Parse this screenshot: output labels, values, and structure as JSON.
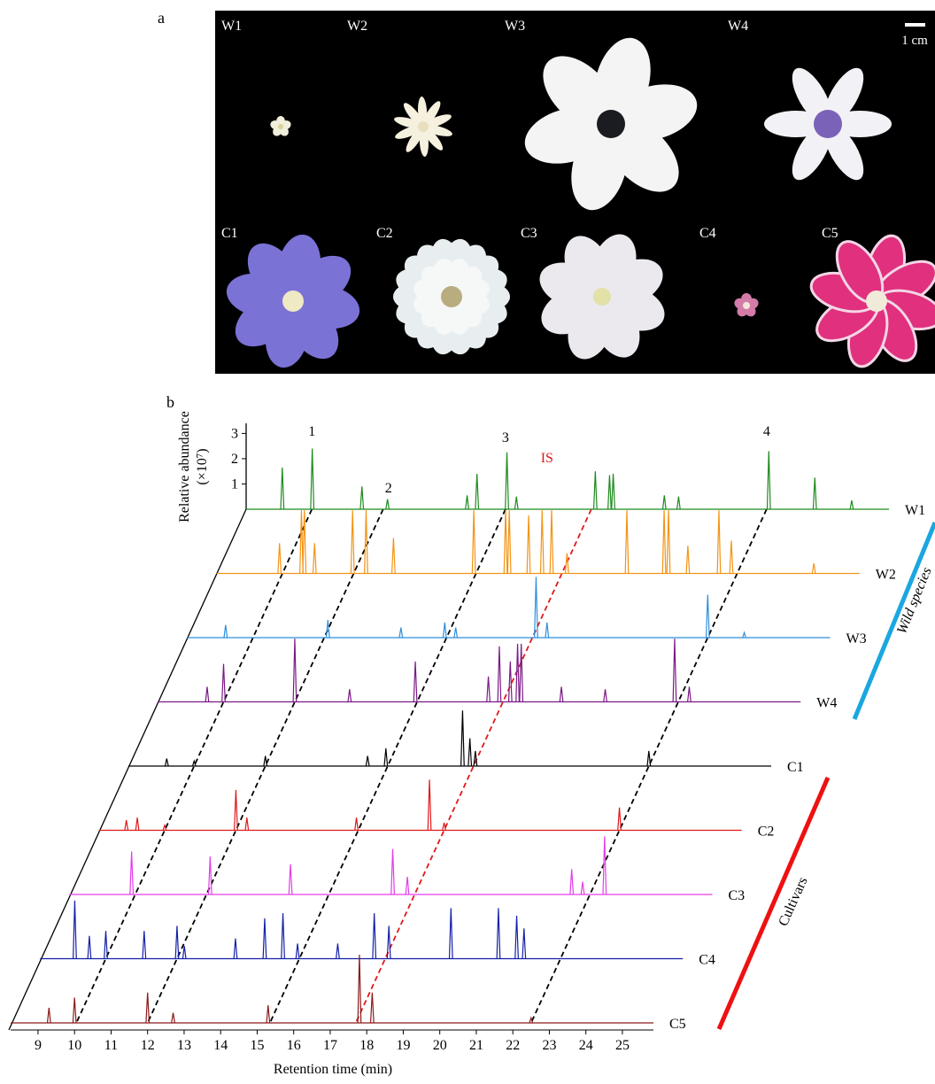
{
  "panel_a": {
    "label": "a",
    "photo_labels": [
      "W1",
      "W2",
      "W3",
      "W4",
      "C1",
      "C2",
      "C3",
      "C4",
      "C5"
    ],
    "scale_bar": "1 cm"
  },
  "chart_data": {
    "type": "line",
    "panel_label": "b",
    "xlabel": "Retention time (min)",
    "ylabel": "Relative abundance",
    "yunit": "(×10⁷)",
    "xlim": [
      8.25,
      25.85
    ],
    "xticks": [
      9,
      10,
      11,
      12,
      13,
      14,
      15,
      16,
      17,
      18,
      19,
      20,
      21,
      22,
      23,
      24,
      25
    ],
    "ylim": [
      0,
      3.4
    ],
    "yticks": [
      1,
      2,
      3
    ],
    "series": [
      {
        "name": "W1",
        "color": "#1e8a1e",
        "x": [
          9.24,
          10.06,
          11.42,
          12.12,
          14.3,
          14.57,
          15.39,
          15.65,
          17.81,
          18.2,
          18.3,
          19.7,
          20.09,
          22.56,
          23.82,
          24.83
        ],
        "values": [
          1.65,
          2.4,
          0.9,
          0.4,
          0.55,
          1.4,
          2.25,
          0.5,
          1.5,
          1.35,
          1.4,
          0.55,
          0.5,
          2.3,
          1.25,
          0.35
        ]
      },
      {
        "name": "W2",
        "color": "#f39416",
        "x": [
          9.97,
          10.57,
          10.65,
          10.93,
          11.97,
          12.34,
          13.09,
          15.29,
          16.16,
          16.26,
          16.79,
          17.16,
          17.42,
          17.84,
          19.48,
          20.5,
          20.62,
          21.15,
          22.0,
          22.34,
          24.6
        ],
        "values": [
          1.2,
          2.5,
          2.5,
          1.2,
          2.5,
          2.5,
          1.4,
          2.5,
          2.5,
          2.5,
          2.3,
          2.5,
          2.5,
          0.8,
          2.5,
          2.5,
          2.5,
          1.1,
          2.5,
          1.3,
          0.4
        ]
      },
      {
        "name": "W3",
        "color": "#2e8fdb",
        "x": [
          9.3,
          12.1,
          14.1,
          15.3,
          15.6,
          17.8,
          18.1,
          22.5,
          23.5
        ],
        "values": [
          0.5,
          0.7,
          0.4,
          0.6,
          0.4,
          2.4,
          0.6,
          1.7,
          0.2
        ]
      },
      {
        "name": "W4",
        "color": "#7b1a86",
        "x": [
          9.6,
          10.05,
          12.0,
          13.5,
          15.3,
          17.3,
          17.6,
          17.9,
          18.1,
          18.2,
          19.3,
          20.5,
          22.4,
          22.8
        ],
        "values": [
          0.6,
          1.5,
          2.5,
          0.5,
          1.6,
          1.0,
          2.2,
          1.6,
          2.3,
          2.3,
          0.6,
          0.5,
          2.5,
          0.6
        ]
      },
      {
        "name": "C1",
        "color": "#000000",
        "x": [
          9.3,
          10.05,
          12.0,
          14.8,
          15.3,
          17.4,
          17.6,
          17.75,
          22.5
        ],
        "values": [
          0.3,
          0.2,
          0.4,
          0.4,
          0.7,
          2.2,
          1.1,
          0.6,
          0.6
        ]
      },
      {
        "name": "C2",
        "color": "#e0191b",
        "x": [
          9.0,
          9.3,
          10.05,
          12.0,
          12.3,
          15.3,
          17.3,
          17.7,
          22.5
        ],
        "values": [
          0.4,
          0.5,
          0.2,
          1.6,
          0.5,
          0.5,
          2.0,
          0.3,
          0.9
        ]
      },
      {
        "name": "C3",
        "color": "#e23de8",
        "x": [
          9.95,
          12.1,
          14.3,
          17.1,
          17.5,
          22.0,
          22.3,
          22.9
        ],
        "values": [
          1.7,
          1.5,
          1.2,
          1.8,
          0.7,
          1.0,
          0.5,
          2.3
        ]
      },
      {
        "name": "C4",
        "color": "#1420a8",
        "x": [
          9.2,
          9.6,
          10.05,
          11.1,
          12.0,
          12.2,
          13.6,
          14.4,
          14.9,
          15.3,
          16.4,
          17.4,
          17.8,
          19.5,
          20.8,
          21.3,
          21.5
        ],
        "values": [
          2.3,
          0.9,
          1.1,
          1.1,
          1.3,
          0.5,
          0.8,
          1.6,
          1.8,
          0.6,
          0.6,
          1.8,
          1.3,
          2.0,
          2.0,
          1.7,
          1.2
        ]
      },
      {
        "name": "C5",
        "color": "#8b1a1a",
        "x": [
          9.3,
          10.0,
          12.0,
          12.7,
          15.3,
          17.8,
          18.15,
          22.5
        ],
        "values": [
          0.6,
          1.0,
          1.2,
          0.4,
          0.7,
          2.7,
          1.2,
          0.2
        ]
      }
    ],
    "peak_markers": [
      {
        "label": "1",
        "x": 10.05,
        "color": "#000000"
      },
      {
        "label": "2",
        "x": 12.0,
        "color": "#000000"
      },
      {
        "label": "3",
        "x": 15.35,
        "color": "#000000"
      },
      {
        "label": "IS",
        "x": 17.7,
        "color": "#e0191b"
      },
      {
        "label": "4",
        "x": 22.5,
        "color": "#000000"
      }
    ],
    "groups": [
      {
        "name": "Wild species",
        "color": "#1aa7e0"
      },
      {
        "name": "Cultivars",
        "color": "#ee1111"
      }
    ]
  }
}
